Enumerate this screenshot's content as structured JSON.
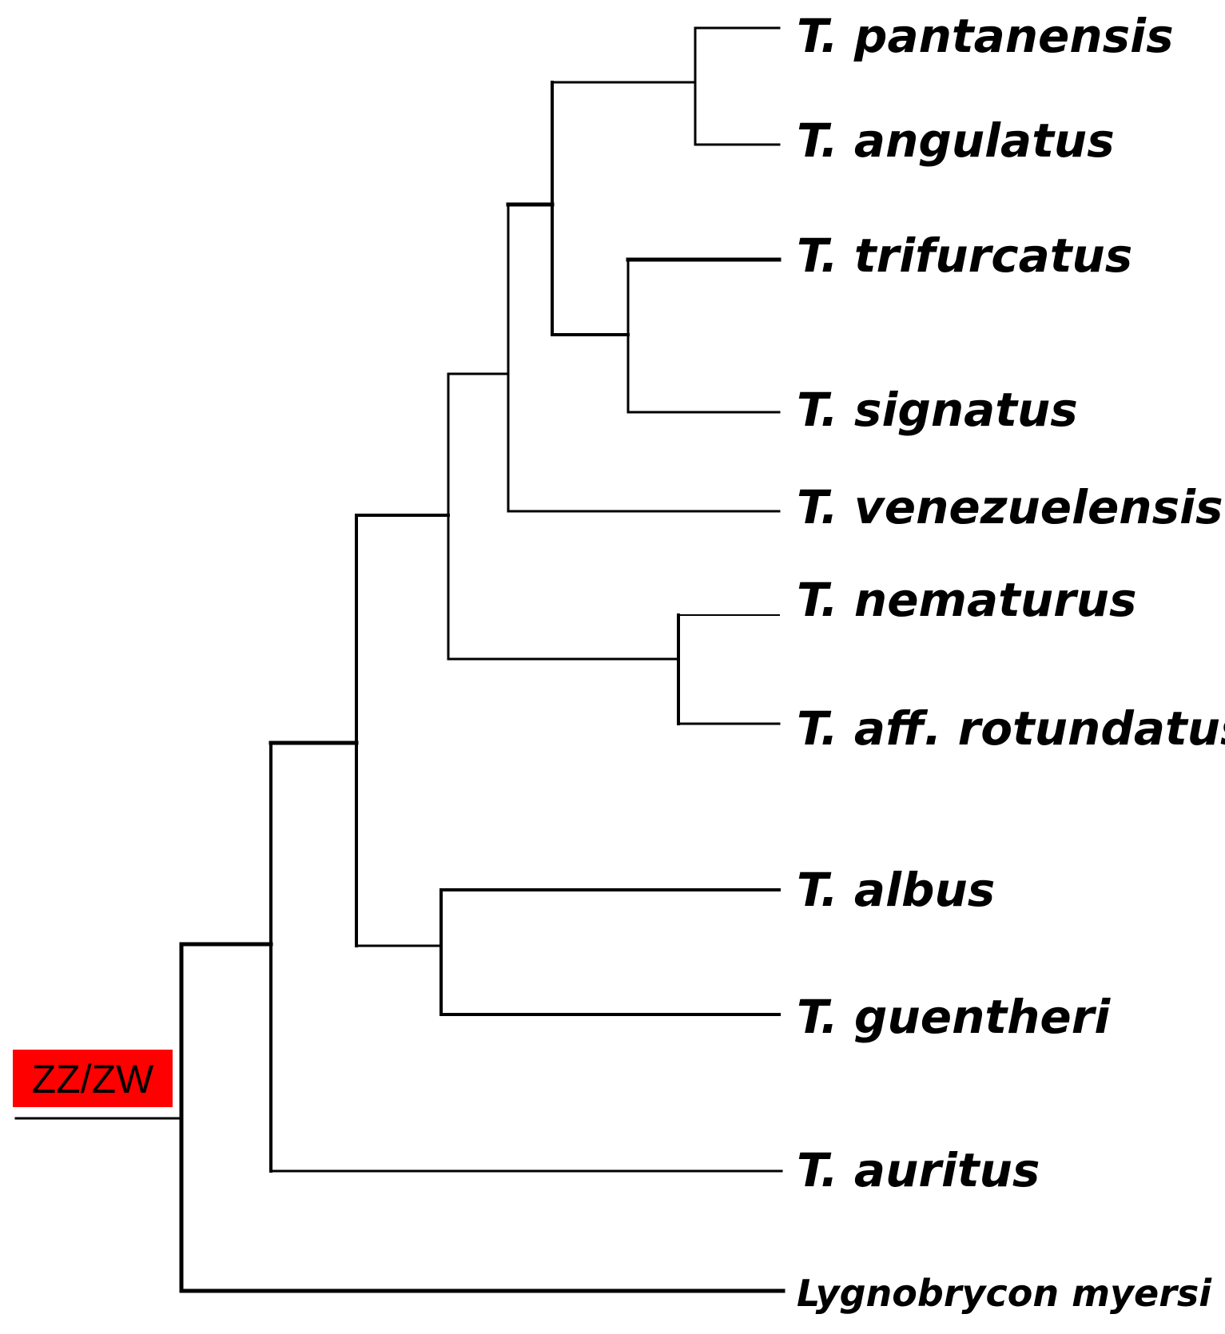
{
  "taxa": [
    "T. pantanensis",
    "T. angulatus",
    "T. trifurcatus",
    "T. signatus",
    "T. venezuelensis",
    "T. nematurus",
    "T. aff. rotundatus",
    "T. albus",
    "T. guentheri",
    "T. auritus",
    "Lygnobrycon myersi"
  ],
  "marker": {
    "label": "ZZ/ZW",
    "color": "#ff0000"
  }
}
